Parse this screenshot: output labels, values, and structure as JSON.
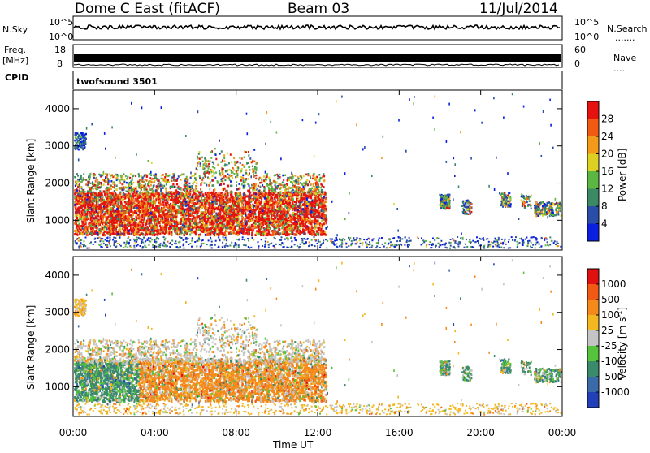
{
  "header": {
    "station": "Dome C East (fitACF)",
    "beam": "Beam 03",
    "date": "11/Jul/2014"
  },
  "panels": {
    "nsky": {
      "label": "N.Sky",
      "top_tick": "10^5",
      "bottom_tick": "10^0"
    },
    "nsearch": {
      "label": "N.Search",
      "dots": "......."
    },
    "freq": {
      "label_line1": "Freq.",
      "label_line2": "[MHz]",
      "top_tick": "18",
      "bottom_tick": "8"
    },
    "nave": {
      "label": "Nave",
      "top_tick": "60",
      "bottom_tick": "0",
      "dots": "...."
    },
    "cpid": {
      "label": "CPID",
      "value": "twofsound 3501"
    }
  },
  "chart_data": [
    {
      "type": "heatmap",
      "name": "power",
      "ylabel": "Slant Range [km]",
      "ylim": [
        200,
        4500
      ],
      "yticks": [
        "1000",
        "2000",
        "3000",
        "4000"
      ],
      "xlim": [
        "00:00",
        "24:00"
      ],
      "colorbar": {
        "label": "Power [dB]",
        "ticks": [
          "4",
          "8",
          "12",
          "16",
          "20",
          "24",
          "28"
        ],
        "colors": [
          "#0a1fe0",
          "#2a4ea8",
          "#3c8a64",
          "#5bb742",
          "#ddd022",
          "#f39a1a",
          "#f05a12",
          "#e6120f"
        ]
      }
    },
    {
      "type": "heatmap",
      "name": "velocity",
      "ylabel": "Slant Range [km]",
      "ylim": [
        200,
        4500
      ],
      "yticks": [
        "1000",
        "2000",
        "3000",
        "4000"
      ],
      "xlim": [
        "00:00",
        "24:00"
      ],
      "colorbar": {
        "label": "Velocity [m s",
        "label_sup": "-1",
        "label_end": "]",
        "ticks": [
          "1000",
          "500",
          "100",
          "25",
          "-25",
          "-100",
          "-500",
          "-1000"
        ],
        "colors": [
          "#2140b8",
          "#3a6aa8",
          "#3a8b6c",
          "#55c43c",
          "#c4c4c4",
          "#f3b81f",
          "#f58a1c",
          "#f05a14",
          "#e01010"
        ]
      }
    }
  ],
  "xaxis": {
    "ticks": [
      "00:00",
      "04:00",
      "08:00",
      "12:00",
      "16:00",
      "20:00",
      "00:00"
    ],
    "label": "Time UT"
  }
}
